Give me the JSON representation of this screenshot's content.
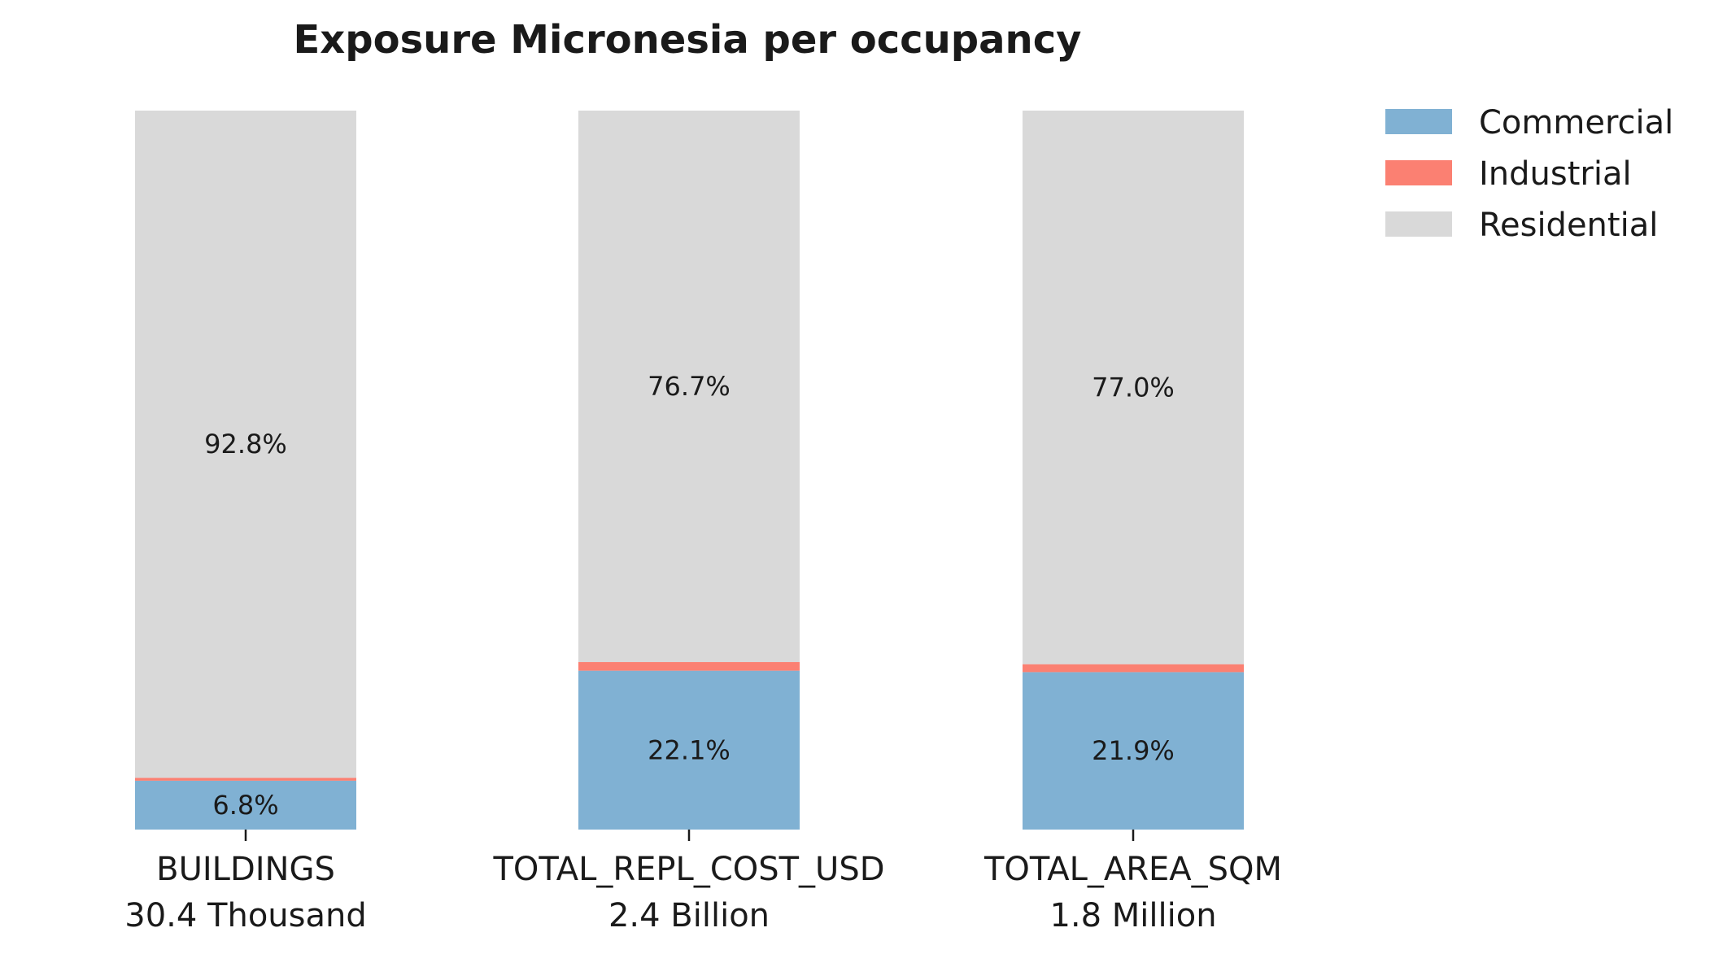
{
  "chart_data": {
    "type": "bar",
    "stacked": true,
    "normalized": true,
    "title": "Exposure Micronesia per occupancy",
    "categories": [
      "BUILDINGS",
      "TOTAL_REPL_COST_USD",
      "TOTAL_AREA_SQM"
    ],
    "category_totals": [
      "30.4 Thousand",
      "2.4 Billion",
      "1.8 Million"
    ],
    "series": [
      {
        "name": "Commercial",
        "color": "#80b1d3",
        "values": [
          6.8,
          22.1,
          21.9
        ],
        "labels": [
          "6.8%",
          "22.1%",
          "21.9%"
        ]
      },
      {
        "name": "Industrial",
        "color": "#fb8072",
        "values": [
          0.4,
          1.2,
          1.1
        ],
        "labels": [
          "",
          "",
          ""
        ]
      },
      {
        "name": "Residential",
        "color": "#d9d9d9",
        "values": [
          92.8,
          76.7,
          77.0
        ],
        "labels": [
          "92.8%",
          "76.7%",
          "77.0%"
        ]
      }
    ],
    "ylim": [
      0,
      100
    ],
    "legend_position": "top-right",
    "grid": false
  }
}
